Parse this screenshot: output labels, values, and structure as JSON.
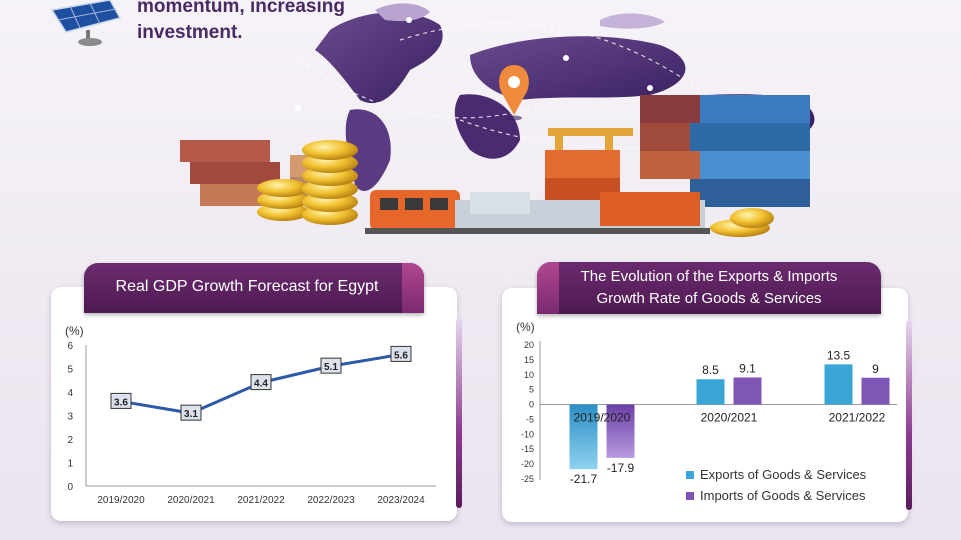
{
  "header": {
    "headline_line1": "momentum, increasing",
    "headline_line2": "investment."
  },
  "colors": {
    "brand_purple": "#5b1f60",
    "line_blue": "#2e59a8",
    "exports_blue": "#3aa6d8",
    "imports_purple": "#7f55b5"
  },
  "chart_data": [
    {
      "type": "line",
      "title": "Real GDP Growth Forecast for Egypt",
      "ylabel": "(%)",
      "categories": [
        "2019/2020",
        "2020/2021",
        "2021/2022",
        "2022/2023",
        "2023/2024"
      ],
      "values": [
        3.6,
        3.1,
        4.4,
        5.1,
        5.6
      ],
      "data_labels": [
        "3.6",
        "3.1",
        "4.4",
        "5.1",
        "5.6"
      ],
      "yticks": [
        "0",
        "1",
        "2",
        "3",
        "4",
        "5",
        "6"
      ],
      "ylim": [
        0,
        6
      ],
      "grid": false
    },
    {
      "type": "bar",
      "title_line1": "The Evolution of the Exports & Imports",
      "title_line2": "Growth Rate of Goods & Services",
      "ylabel": "(%)",
      "categories": [
        "2019/2020",
        "2020/2021",
        "2021/2022"
      ],
      "series": [
        {
          "name": "Exports of Goods & Services",
          "values": [
            -21.7,
            8.5,
            13.5
          ],
          "labels": [
            "-21.7",
            "8.5",
            "13.5"
          ]
        },
        {
          "name": "Imports of Goods & Services",
          "values": [
            -17.9,
            9.1,
            9
          ],
          "labels": [
            "-17.9",
            "9.1",
            "9"
          ]
        }
      ],
      "yticks": [
        "20",
        "15",
        "10",
        "5",
        "0",
        "-5",
        "-10",
        "-15",
        "-20",
        "-25"
      ],
      "ylim": [
        -25,
        20
      ],
      "legend_position": "bottom-right",
      "grid": false
    }
  ]
}
